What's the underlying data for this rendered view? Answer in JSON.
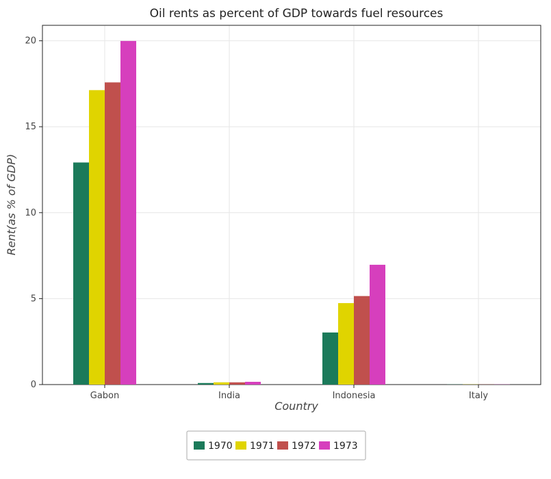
{
  "chart_data": {
    "type": "bar",
    "title": "Oil rents as percent of GDP towards fuel resources",
    "xlabel": "Country",
    "ylabel": "Rent(as % of GDP)",
    "categories": [
      "Gabon",
      "India",
      "Indonesia",
      "Italy"
    ],
    "series": [
      {
        "name": "1970",
        "color": "#1b7a5a",
        "values": [
          12.92,
          0.09,
          3.03,
          0.01
        ]
      },
      {
        "name": "1971",
        "color": "#e0d400",
        "values": [
          17.13,
          0.13,
          4.74,
          0.01
        ]
      },
      {
        "name": "1972",
        "color": "#c0504d",
        "values": [
          17.58,
          0.13,
          5.15,
          0.01
        ]
      },
      {
        "name": "1973",
        "color": "#d63fbd",
        "values": [
          19.99,
          0.16,
          6.97,
          0.01
        ]
      }
    ],
    "ylim": [
      0,
      20.9
    ],
    "yticks": [
      0,
      5,
      10,
      15,
      20
    ],
    "grid": true,
    "legend_position": "bottom-center"
  }
}
